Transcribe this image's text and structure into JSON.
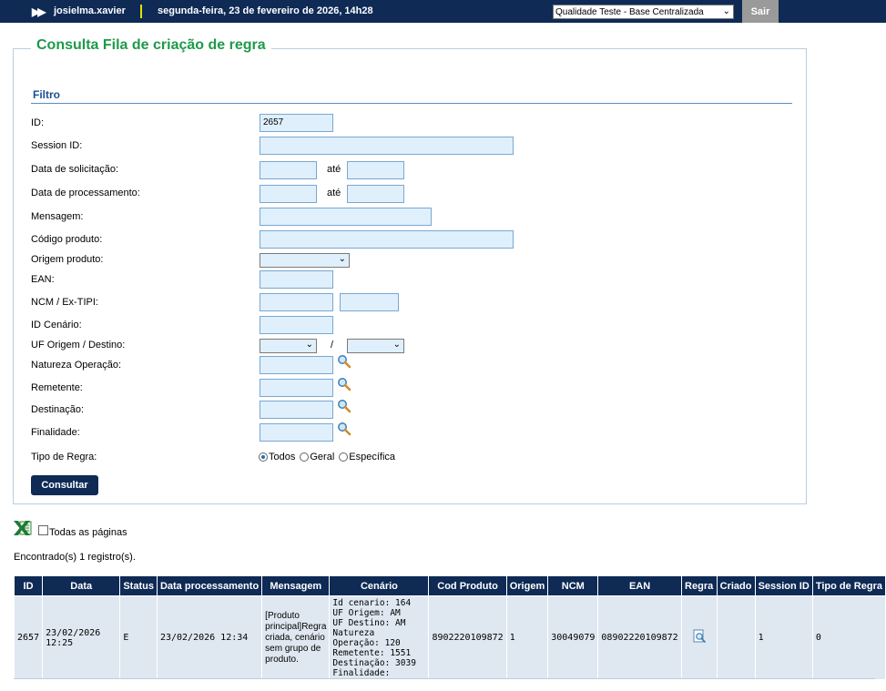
{
  "topbar": {
    "user": "josielma.xavier",
    "datetime": "segunda-feira, 23 de fevereiro de 2026, 14h28",
    "base_select": "Qualidade Teste - Base Centralizada",
    "logout": "Sair",
    "colors": {
      "bar": "#0e2a55",
      "separator": "#e3e000",
      "logout_bg": "#9a9a9a"
    }
  },
  "panel": {
    "title": "Consulta Fila de criação de regra",
    "section": "Filtro",
    "title_color": "#1f9a4a"
  },
  "form": {
    "id_label": "ID:",
    "id_value": "2657",
    "session_label": "Session ID:",
    "data_solicitacao_label": "Data de solicitação:",
    "data_processamento_label": "Data de processamento:",
    "ate": "até",
    "mensagem_label": "Mensagem:",
    "codigo_produto_label": "Código produto:",
    "origem_produto_label": "Origem produto:",
    "ean_label": "EAN:",
    "ncm_label": "NCM / Ex-TIPI:",
    "id_cenario_label": "ID Cenário:",
    "uf_label": "UF Origem / Destino:",
    "uf_separator": "/",
    "natureza_label": "Natureza Operação:",
    "remetente_label": "Remetente:",
    "destinacao_label": "Destinação:",
    "finalidade_label": "Finalidade:",
    "tipo_regra_label": "Tipo de Regra:",
    "tipo_options": [
      "Todos",
      "Geral",
      "Específica"
    ],
    "tipo_selected": "Todos",
    "submit": "Consultar"
  },
  "export": {
    "all_pages_label": "Todas as páginas",
    "icon": "excel-icon"
  },
  "results": {
    "count_text": "Encontrado(s) 1 registro(s).",
    "headers": [
      "ID",
      "Data",
      "Status",
      "Data processamento",
      "Mensagem",
      "Cenário",
      "Cod Produto",
      "Origem",
      "NCM",
      "EAN",
      "Regra",
      "Criado",
      "Session ID",
      "Tipo de Regra"
    ],
    "rows": [
      {
        "id": "2657",
        "data": "23/02/2026 12:25",
        "status": "E",
        "data_processamento": "23/02/2026 12:34",
        "mensagem": "[Produto principal]Regra criada, cenário sem grupo de produto.",
        "cenario": [
          "Id cenario: 164",
          "UF Origem: AM",
          "UF Destino: AM",
          "Natureza Operação: 120",
          "Remetente: 1551",
          "Destinação: 3039",
          "Finalidade:"
        ],
        "cod_produto": "8902220109872",
        "origem": "1",
        "ncm": "30049079",
        "ean": "08902220109872",
        "regra_icon": "view-document-icon",
        "criado": "",
        "session_id": "1",
        "tipo_regra": "0"
      }
    ]
  }
}
